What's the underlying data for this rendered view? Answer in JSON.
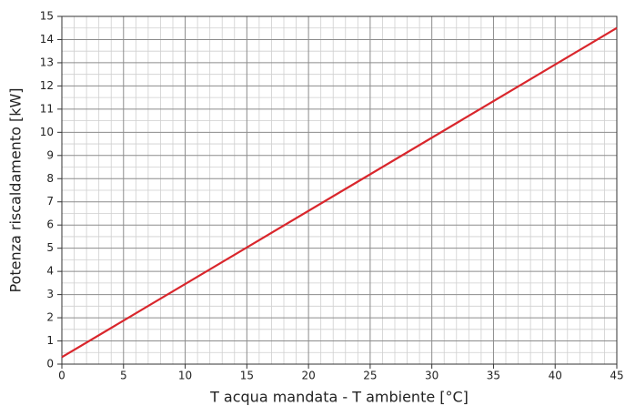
{
  "chart_data": {
    "type": "line",
    "x_label": "T acqua mandata - T ambiente [°C]",
    "y_label": "Potenza riscaldamento [kW]",
    "x": [
      0,
      45
    ],
    "series": [
      {
        "color": "#d9262c",
        "values": [
          0.3,
          14.5
        ]
      }
    ],
    "xlim": [
      0,
      45
    ],
    "xticks": [
      0,
      5,
      10,
      15,
      20,
      25,
      30,
      35,
      40,
      45
    ],
    "ylim": [
      0,
      15
    ],
    "yticks": [
      0,
      1,
      2,
      3,
      4,
      5,
      6,
      7,
      8,
      9,
      10,
      11,
      12,
      13,
      14,
      15
    ],
    "grid": true,
    "minor_grid": true
  }
}
